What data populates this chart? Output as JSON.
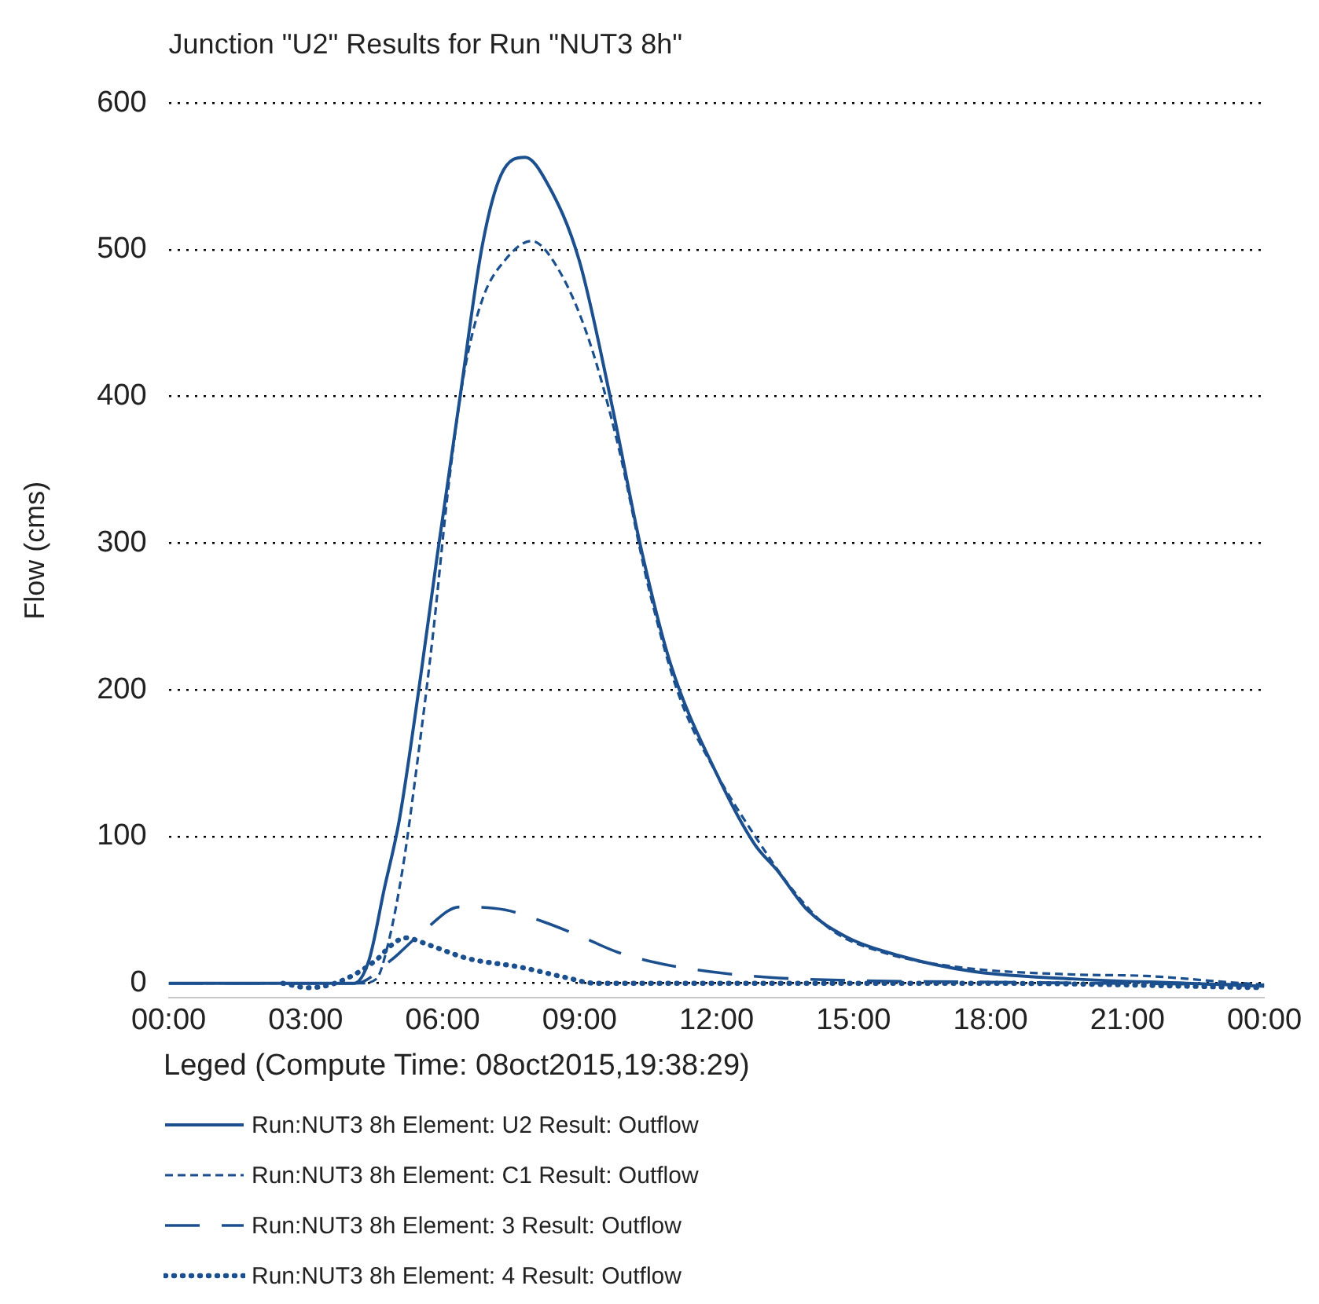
{
  "chart_data": {
    "type": "line",
    "title": "Junction \"U2\" Results for Run \"NUT3 8h\"",
    "ylabel": "Flow (cms)",
    "legend_title": "Leged (Compute Time: 08oct2015,19:38:29)",
    "legend": "bottom",
    "grid": "y",
    "xlim": [
      0,
      24
    ],
    "xticks": [
      {
        "value": 0,
        "label": "00:00"
      },
      {
        "value": 3,
        "label": "03:00"
      },
      {
        "value": 6,
        "label": "06:00"
      },
      {
        "value": 9,
        "label": "09:00"
      },
      {
        "value": 12,
        "label": "12:00"
      },
      {
        "value": 15,
        "label": "15:00"
      },
      {
        "value": 18,
        "label": "18:00"
      },
      {
        "value": 21,
        "label": "21:00"
      },
      {
        "value": 24,
        "label": "00:00"
      }
    ],
    "ylim": [
      -10,
      600
    ],
    "yticks": [
      0,
      100,
      200,
      300,
      400,
      500,
      600
    ],
    "series": [
      {
        "name": "Run:NUT3 8h Element: U2 Result: Outflow",
        "color": "#1b4f8e",
        "line_style": "solid",
        "x": [
          0,
          3,
          3.9,
          4.06,
          4.39,
          4.72,
          5.05,
          5.46,
          5.88,
          6.37,
          6.87,
          7.28,
          7.81,
          8.28,
          8.99,
          9.69,
          10.35,
          11,
          12,
          12.83,
          13.33,
          13.99,
          14.82,
          15.98,
          17.63,
          19.8,
          22.3,
          24
        ],
        "values": [
          0,
          0,
          0,
          0,
          16,
          64,
          111,
          196,
          291,
          397,
          503,
          551,
          563,
          546,
          493,
          397,
          296,
          217,
          143,
          95,
          77,
          50,
          32,
          19,
          8,
          3,
          0,
          -2
        ]
      },
      {
        "name": "Run:NUT3 8h Element: C1 Result: Outflow",
        "color": "#1b4f8e",
        "line_style": "dashed",
        "x": [
          0,
          3,
          4.2,
          4.55,
          4.8,
          5.13,
          5.46,
          5.79,
          6.13,
          6.46,
          6.87,
          7.37,
          7.95,
          8.53,
          9.19,
          9.85,
          10.51,
          11.18,
          12,
          12.83,
          13.66,
          14.49,
          15.65,
          17.3,
          19.8,
          21.4,
          23.1,
          24
        ],
        "values": [
          0,
          0,
          0,
          3,
          26,
          79,
          154,
          238,
          339,
          414,
          466,
          493,
          506,
          487,
          440,
          366,
          270,
          196,
          143,
          101,
          64,
          37,
          21,
          11,
          6,
          5,
          1,
          -1
        ]
      },
      {
        "name": "Run:NUT3 8h Element: 3 Result: Outflow",
        "color": "#1b4f8e",
        "line_style": "longdash",
        "x": [
          0,
          3,
          4.1,
          4.88,
          5.63,
          6.37,
          7.37,
          8.2,
          9.02,
          9.85,
          10.84,
          11.84,
          13.16,
          14.82,
          17.3,
          24
        ],
        "values": [
          0,
          0,
          0,
          16,
          37,
          52,
          50,
          42,
          32,
          21,
          13,
          8,
          4,
          2,
          1,
          -1
        ]
      },
      {
        "name": "Run:NUT3 8h Element: 4 Result: Outflow",
        "color": "#1b4f8e",
        "line_style": "dotted",
        "x": [
          2.5,
          3.06,
          3.73,
          4.55,
          4.88,
          5.18,
          5.71,
          6.54,
          7.7,
          8.69,
          9.35,
          12,
          18,
          24
        ],
        "values": [
          0,
          -3,
          1,
          16,
          26,
          31,
          26,
          17,
          11,
          4,
          0,
          0,
          0,
          -3
        ]
      }
    ]
  }
}
